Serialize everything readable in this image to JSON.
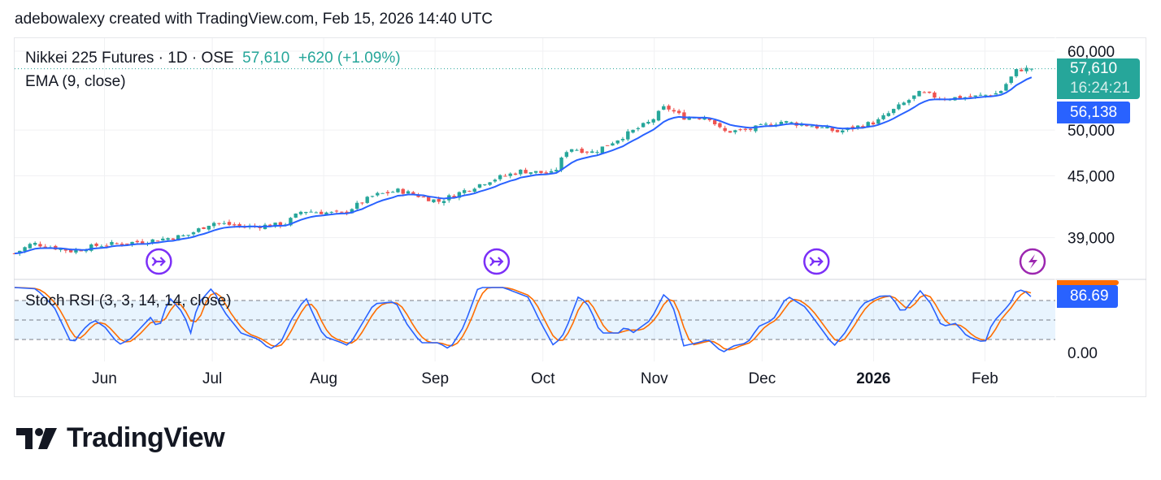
{
  "header": "adebowalexy created with TradingView.com, Feb 15, 2026 14:40 UTC",
  "legend": {
    "symbol": "Nikkei 225 Futures · 1D · OSE",
    "price": "57,610",
    "change": "+620 (+1.09%)",
    "ema": "EMA (9, close)",
    "stoch": "Stoch RSI (3, 3, 14, 14, close)"
  },
  "tags": {
    "last": "57,610",
    "countdown": "16:24:21",
    "ema": "56,138",
    "stoch": "86.69"
  },
  "colors": {
    "up": "#26a69a",
    "down": "#ef5350",
    "ema": "#2962ff",
    "k": "#2962ff",
    "d": "#ff6d00",
    "event": "#7b2ff7",
    "lightning": "#9c27b0"
  },
  "logo": "TradingView",
  "chart_data": {
    "type": "candlestick",
    "title": "Nikkei 225 Futures · 1D · OSE",
    "scale": "log",
    "x_unit": "days since 2025-05-07",
    "price_ticks": [
      {
        "v": 60000,
        "label": "60,000"
      },
      {
        "v": 50000,
        "label": "50,000"
      },
      {
        "v": 45000,
        "label": "45,000"
      },
      {
        "v": 39000,
        "label": "39,000"
      }
    ],
    "stoch_ticks": [
      {
        "v": 0,
        "label": "0.00"
      }
    ],
    "months": [
      {
        "d": 25,
        "label": "Jun"
      },
      {
        "d": 55,
        "label": "Jul"
      },
      {
        "d": 86,
        "label": "Aug"
      },
      {
        "d": 117,
        "label": "Sep"
      },
      {
        "d": 147,
        "label": "Oct"
      },
      {
        "d": 178,
        "label": "Nov"
      },
      {
        "d": 208,
        "label": "Dec"
      },
      {
        "d": 239,
        "label": "2026",
        "bold": true
      },
      {
        "d": 270,
        "label": "Feb"
      }
    ],
    "price_path": [
      [
        0,
        37600
      ],
      [
        5,
        38500
      ],
      [
        16,
        37800
      ],
      [
        23,
        38300
      ],
      [
        37,
        38700
      ],
      [
        48,
        39200
      ],
      [
        55,
        40400
      ],
      [
        64,
        40000
      ],
      [
        75,
        40200
      ],
      [
        80,
        41500
      ],
      [
        91,
        41200
      ],
      [
        100,
        43000
      ],
      [
        107,
        43500
      ],
      [
        118,
        42400
      ],
      [
        132,
        44500
      ],
      [
        141,
        45500
      ],
      [
        150,
        45200
      ],
      [
        154,
        48000
      ],
      [
        161,
        47500
      ],
      [
        168,
        49000
      ],
      [
        177,
        51000
      ],
      [
        181,
        52800
      ],
      [
        186,
        51500
      ],
      [
        193,
        51600
      ],
      [
        197,
        49800
      ],
      [
        204,
        50000
      ],
      [
        213,
        51000
      ],
      [
        222,
        50500
      ],
      [
        229,
        49800
      ],
      [
        240,
        51000
      ],
      [
        245,
        52500
      ],
      [
        252,
        54500
      ],
      [
        258,
        53800
      ],
      [
        267,
        54000
      ],
      [
        274,
        54500
      ],
      [
        279,
        57500
      ],
      [
        283,
        57610
      ]
    ],
    "last_close": 57610,
    "ema_last": 56138,
    "stoch_k": [
      [
        0,
        100
      ],
      [
        6,
        98
      ],
      [
        11,
        70
      ],
      [
        16,
        12
      ],
      [
        19,
        35
      ],
      [
        22,
        50
      ],
      [
        25,
        40
      ],
      [
        29,
        12
      ],
      [
        32,
        20
      ],
      [
        38,
        55
      ],
      [
        40,
        35
      ],
      [
        43,
        85
      ],
      [
        47,
        60
      ],
      [
        49,
        30
      ],
      [
        51,
        75
      ],
      [
        55,
        100
      ],
      [
        58,
        65
      ],
      [
        63,
        30
      ],
      [
        68,
        20
      ],
      [
        71,
        5
      ],
      [
        74,
        15
      ],
      [
        77,
        50
      ],
      [
        81,
        85
      ],
      [
        83,
        60
      ],
      [
        86,
        25
      ],
      [
        91,
        15
      ],
      [
        93,
        10
      ],
      [
        100,
        75
      ],
      [
        106,
        78
      ],
      [
        109,
        45
      ],
      [
        113,
        15
      ],
      [
        118,
        15
      ],
      [
        121,
        5
      ],
      [
        125,
        40
      ],
      [
        129,
        100
      ],
      [
        136,
        100
      ],
      [
        143,
        85
      ],
      [
        146,
        50
      ],
      [
        150,
        10
      ],
      [
        153,
        30
      ],
      [
        157,
        88
      ],
      [
        160,
        70
      ],
      [
        163,
        30
      ],
      [
        168,
        30
      ],
      [
        170,
        40
      ],
      [
        172,
        30
      ],
      [
        177,
        50
      ],
      [
        181,
        93
      ],
      [
        184,
        60
      ],
      [
        186,
        10
      ],
      [
        190,
        15
      ],
      [
        193,
        20
      ],
      [
        197,
        0
      ],
      [
        200,
        10
      ],
      [
        204,
        15
      ],
      [
        207,
        40
      ],
      [
        211,
        50
      ],
      [
        215,
        87
      ],
      [
        220,
        70
      ],
      [
        224,
        40
      ],
      [
        228,
        10
      ],
      [
        231,
        30
      ],
      [
        236,
        75
      ],
      [
        241,
        87
      ],
      [
        244,
        87
      ],
      [
        247,
        60
      ],
      [
        252,
        95
      ],
      [
        255,
        75
      ],
      [
        258,
        40
      ],
      [
        262,
        45
      ],
      [
        265,
        25
      ],
      [
        270,
        15
      ],
      [
        272,
        45
      ],
      [
        277,
        75
      ],
      [
        279,
        97
      ],
      [
        281,
        95
      ],
      [
        283,
        85
      ]
    ],
    "stoch_levels": [
      80,
      50,
      20
    ],
    "events": [
      {
        "d": 39,
        "type": "arrow"
      },
      {
        "d": 133,
        "type": "arrow"
      },
      {
        "d": 222,
        "type": "arrow"
      },
      {
        "d": 283,
        "type": "lightning"
      }
    ]
  }
}
